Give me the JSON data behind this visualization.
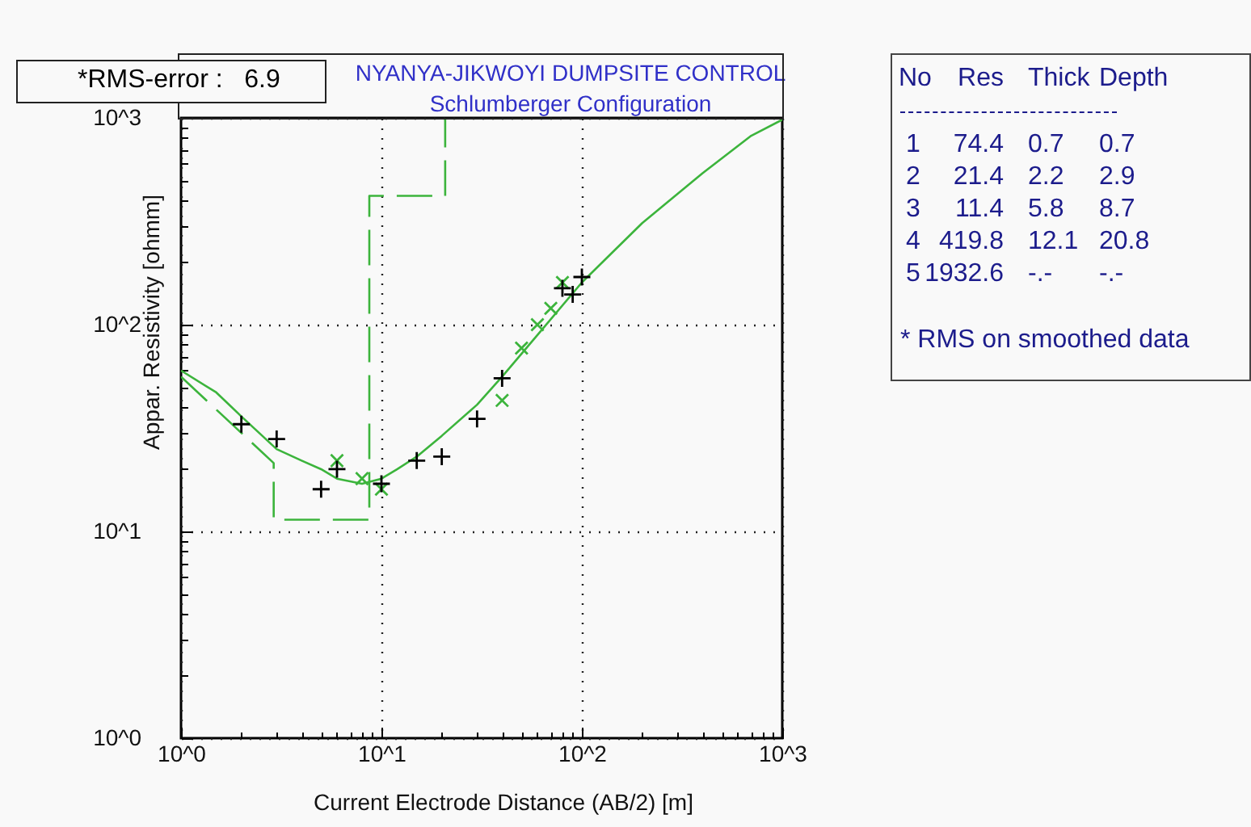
{
  "chart_data": {
    "type": "line",
    "title": "NYANYA-JIKWOYI DUMPSITE CONTROL",
    "subtitle": "Schlumberger Configuration",
    "xlabel": "Current Electrode Distance (AB/2) [m]",
    "ylabel": "Appar. Resistivity [ohmm]",
    "annotations": [
      "*RMS-error :   6.9",
      "No Res Thick Depth",
      "1 74.4 0.7 0.7",
      "2 21.4 2.2 2.9",
      "3 11.4 5.8 8.7",
      "4 419.8 12.1 20.8",
      "5 1932.6 -.- -.-",
      "* RMS on smoothed data"
    ],
    "log": "xy",
    "grid": true,
    "xlim": [
      1,
      1000
    ],
    "ylim": [
      1,
      1000
    ],
    "xticks": [
      {
        "value": 1,
        "label": "10^0"
      },
      {
        "value": 2,
        "label": null
      },
      {
        "value": 3,
        "label": null
      },
      {
        "value": 4,
        "label": null
      },
      {
        "value": 5,
        "label": null
      },
      {
        "value": 6,
        "label": null
      },
      {
        "value": 7,
        "label": null
      },
      {
        "value": 8,
        "label": null
      },
      {
        "value": 9,
        "label": null
      },
      {
        "value": 10,
        "label": "10^1"
      },
      {
        "value": 20,
        "label": null
      },
      {
        "value": 30,
        "label": null
      },
      {
        "value": 40,
        "label": null
      },
      {
        "value": 50,
        "label": null
      },
      {
        "value": 60,
        "label": null
      },
      {
        "value": 70,
        "label": null
      },
      {
        "value": 80,
        "label": null
      },
      {
        "value": 90,
        "label": null
      },
      {
        "value": 100,
        "label": "10^2"
      },
      {
        "value": 200,
        "label": null
      },
      {
        "value": 300,
        "label": null
      },
      {
        "value": 400,
        "label": null
      },
      {
        "value": 500,
        "label": null
      },
      {
        "value": 600,
        "label": null
      },
      {
        "value": 700,
        "label": null
      },
      {
        "value": 800,
        "label": null
      },
      {
        "value": 900,
        "label": null
      },
      {
        "value": 1000,
        "label": "10^3"
      }
    ],
    "yticks": [
      {
        "value": 1,
        "label": "10^0"
      },
      {
        "value": 2,
        "label": null
      },
      {
        "value": 3,
        "label": null
      },
      {
        "value": 4,
        "label": null
      },
      {
        "value": 5,
        "label": null
      },
      {
        "value": 6,
        "label": null
      },
      {
        "value": 7,
        "label": null
      },
      {
        "value": 8,
        "label": null
      },
      {
        "value": 9,
        "label": null
      },
      {
        "value": 10,
        "label": "10^1"
      },
      {
        "value": 20,
        "label": null
      },
      {
        "value": 30,
        "label": null
      },
      {
        "value": 40,
        "label": null
      },
      {
        "value": 50,
        "label": null
      },
      {
        "value": 60,
        "label": null
      },
      {
        "value": 70,
        "label": null
      },
      {
        "value": 80,
        "label": null
      },
      {
        "value": 90,
        "label": null
      },
      {
        "value": 100,
        "label": "10^2"
      },
      {
        "value": 200,
        "label": null
      },
      {
        "value": 300,
        "label": null
      },
      {
        "value": 400,
        "label": null
      },
      {
        "value": 500,
        "label": null
      },
      {
        "value": 600,
        "label": null
      },
      {
        "value": 700,
        "label": null
      },
      {
        "value": 800,
        "label": null
      },
      {
        "value": 900,
        "label": null
      },
      {
        "value": 1000,
        "label": "10^3"
      }
    ],
    "series": [
      {
        "line_style": "dashed",
        "color": "#3cb43c",
        "x": [
          1,
          2.9,
          2.9,
          8.7,
          8.7,
          20.8,
          20.8
        ],
        "values": [
          56,
          21.4,
          11.4,
          11.4,
          419.8,
          419.8,
          1000
        ]
      },
      {
        "line_style": "solid",
        "color": "#3cb43c",
        "x": [
          1,
          1.5,
          2,
          3,
          4,
          5,
          6,
          8,
          10,
          12,
          15,
          20,
          30,
          40,
          60,
          100,
          200,
          400,
          700,
          1000
        ],
        "values": [
          60,
          47,
          36,
          25,
          22,
          20,
          18,
          17,
          18,
          20,
          23,
          29,
          41,
          56,
          89,
          160,
          310,
          540,
          820,
          980
        ]
      },
      {
        "type": "scatter",
        "marker": "x",
        "color": "#3cb43c",
        "x": [
          6,
          8,
          10,
          40,
          50,
          60,
          70,
          80
        ],
        "values": [
          22,
          18,
          16,
          43,
          77,
          100,
          120,
          160
        ]
      },
      {
        "type": "scatter",
        "marker": "cross",
        "color": "#000000",
        "x": [
          2,
          3,
          5,
          6,
          10,
          15,
          20,
          30,
          40,
          80,
          90,
          100
        ],
        "values": [
          33,
          28,
          16,
          20,
          17,
          22,
          23,
          35,
          55,
          150,
          140,
          170
        ]
      }
    ]
  }
}
